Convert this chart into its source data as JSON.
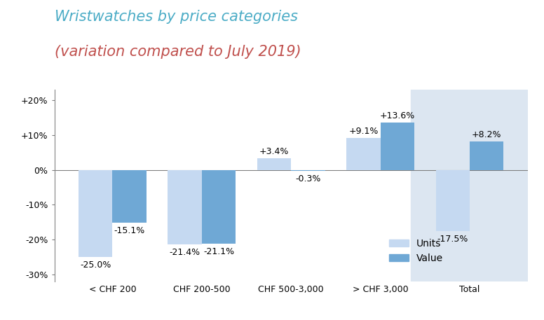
{
  "title_line1": "Wristwatches by price categories",
  "title_line2": "(variation compared to July 2019)",
  "title_color1": "#4bacc6",
  "title_color2": "#c0504d",
  "categories": [
    "< CHF 200",
    "CHF 200-500",
    "CHF 500-3,000",
    "> CHF 3,000",
    "Total"
  ],
  "units_values": [
    -25.0,
    -21.4,
    3.4,
    9.1,
    -17.5
  ],
  "value_values": [
    -15.1,
    -21.1,
    -0.3,
    13.6,
    8.2
  ],
  "units_color": "#c5d9f1",
  "value_color": "#6fa8d5",
  "total_bg_color": "#dce6f1",
  "ylim": [
    -32,
    23
  ],
  "yticks": [
    -30,
    -20,
    -10,
    0,
    10,
    20
  ],
  "ytick_labels": [
    "-30%",
    "-20%",
    "-10%",
    "0%",
    "+10%",
    "+20%"
  ],
  "bar_width": 0.38,
  "legend_labels": [
    "Units",
    "Value"
  ],
  "figsize": [
    7.76,
    4.57
  ],
  "dpi": 100,
  "label_fontsize": 9,
  "axis_fontsize": 9,
  "title_fontsize1": 15,
  "title_fontsize2": 15
}
